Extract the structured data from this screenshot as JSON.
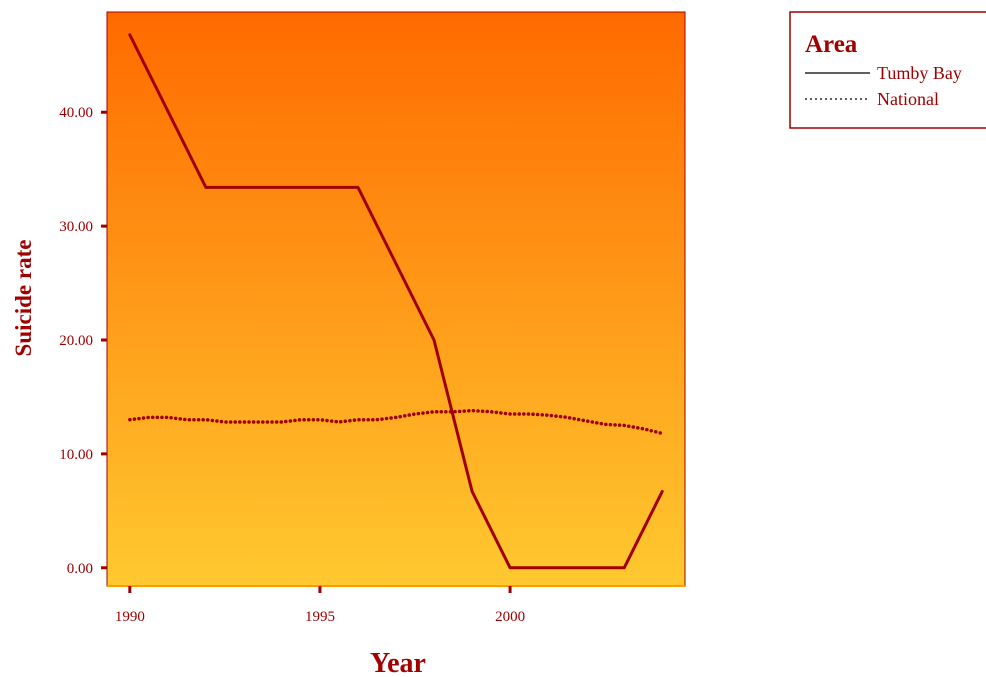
{
  "chart_data": {
    "type": "line",
    "xlabel": "Year",
    "ylabel": "Suicide rate",
    "xlim": [
      1989.4,
      2004.6
    ],
    "ylim": [
      -1.6,
      48.8
    ],
    "x_ticks": [
      1990,
      1995,
      2000
    ],
    "x_tick_labels": [
      "1990",
      "1995",
      "2000"
    ],
    "y_ticks": [
      0,
      10,
      20,
      30,
      40
    ],
    "y_tick_labels": [
      "0.00",
      "10.00",
      "20.00",
      "30.00",
      "40.00"
    ],
    "legend_position": "top-right, outside plot",
    "series": [
      {
        "name": "Tumby Bay",
        "style": "solid",
        "x": [
          1990,
          1992,
          1996,
          1998,
          1999,
          2000,
          2003,
          2004
        ],
        "y": [
          46.8,
          33.4,
          33.4,
          20.0,
          6.7,
          0.0,
          0.0,
          6.7
        ]
      },
      {
        "name": "National",
        "style": "dotted",
        "x": [
          1990,
          1990.5,
          1991,
          1991.5,
          1992,
          1992.5,
          1993,
          1993.5,
          1994,
          1994.5,
          1995,
          1995.5,
          1996,
          1996.5,
          1997,
          1997.5,
          1998,
          1998.5,
          1999,
          1999.5,
          2000,
          2000.5,
          2001,
          2001.5,
          2002,
          2002.5,
          2003,
          2003.5,
          2004
        ],
        "y": [
          13.0,
          13.2,
          13.2,
          13.0,
          13.0,
          12.8,
          12.8,
          12.8,
          12.8,
          13.0,
          13.0,
          12.8,
          13.0,
          13.0,
          13.2,
          13.5,
          13.7,
          13.7,
          13.8,
          13.7,
          13.5,
          13.5,
          13.4,
          13.2,
          12.9,
          12.6,
          12.5,
          12.2,
          11.8
        ]
      }
    ]
  },
  "legend": {
    "title": "Area"
  },
  "colors": {
    "line": "#a00000",
    "text": "#a00000",
    "axis": "#a00000",
    "plot_gradient_top": "#ff6a00",
    "plot_gradient_bottom": "#ffc930",
    "legend_border": "#a00000"
  }
}
